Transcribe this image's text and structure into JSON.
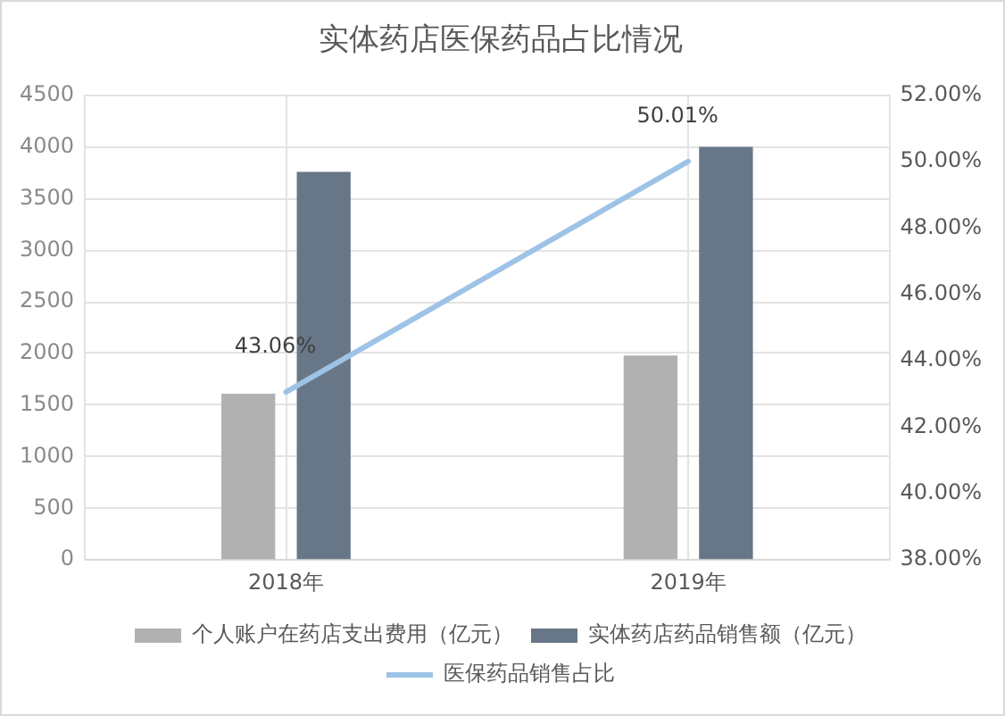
{
  "chart_data": {
    "type": "bar",
    "title": "实体药店医保药品占比情况",
    "categories": [
      "2018年",
      "2019年"
    ],
    "series": [
      {
        "name": "个人账户在药店支出费用（亿元）",
        "color": "#b0b1b0",
        "values": [
          1610,
          1980
        ]
      },
      {
        "name": "实体药店药品销售额（亿元）",
        "color": "#687787",
        "values": [
          3760,
          4000
        ]
      },
      {
        "name": "医保药品销售占比",
        "type": "line",
        "axis": "y2",
        "color": "#9dc3e6",
        "values": [
          43.06,
          50.01
        ],
        "value_labels": [
          "43.06%",
          "50.01%"
        ]
      }
    ],
    "ylim": [
      0,
      4500
    ],
    "yticks": [
      0,
      500,
      1000,
      1500,
      2000,
      2500,
      3000,
      3500,
      4000,
      4500
    ],
    "y2lim": [
      38,
      52
    ],
    "y2ticks": [
      {
        "value": 38,
        "label": "38.00%"
      },
      {
        "value": 40,
        "label": "40.00%"
      },
      {
        "value": 42,
        "label": "42.00%"
      },
      {
        "value": 44,
        "label": "44.00%"
      },
      {
        "value": 46,
        "label": "46.00%"
      },
      {
        "value": 48,
        "label": "48.00%"
      },
      {
        "value": 50,
        "label": "50.00%"
      },
      {
        "value": 52,
        "label": "52.00%"
      }
    ],
    "grid": true,
    "legend": "bottom",
    "marker": "none",
    "line_style": "solid"
  }
}
